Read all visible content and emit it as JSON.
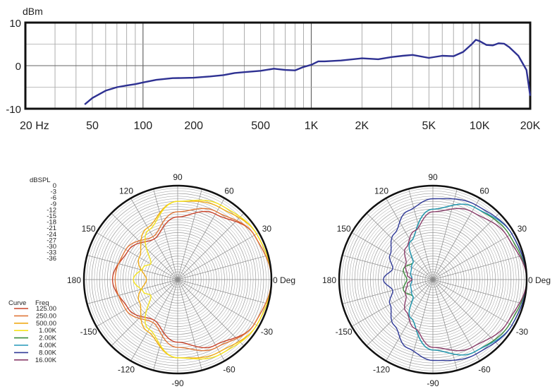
{
  "chart_data": [
    {
      "type": "line",
      "ylabel": "dBm",
      "x_scale": "log",
      "xlim": [
        20,
        20000
      ],
      "ylim": [
        -10,
        10
      ],
      "grid": true,
      "x_tick_labels": [
        "20 Hz",
        "50",
        "100",
        "200",
        "500",
        "1K",
        "2K",
        "5K",
        "10K",
        "20K"
      ],
      "x_tick_values": [
        20,
        50,
        100,
        200,
        500,
        1000,
        2000,
        5000,
        10000,
        20000
      ],
      "y_tick_labels": [
        "10",
        "0",
        "-10"
      ],
      "y_tick_values": [
        10,
        0,
        -10
      ],
      "line_color": "#2e3192",
      "x": [
        45,
        50,
        60,
        70,
        80,
        90,
        100,
        120,
        150,
        200,
        250,
        300,
        350,
        400,
        500,
        600,
        700,
        800,
        900,
        1000,
        1100,
        1200,
        1500,
        2000,
        2500,
        3000,
        3500,
        4000,
        5000,
        6000,
        7000,
        8000,
        9000,
        9500,
        10000,
        11000,
        12000,
        13000,
        14000,
        15000,
        17000,
        19000,
        20000
      ],
      "y": [
        -9,
        -7.5,
        -5.8,
        -5.0,
        -4.6,
        -4.3,
        -3.9,
        -3.3,
        -2.9,
        -2.8,
        -2.5,
        -2.2,
        -1.7,
        -1.5,
        -1.2,
        -0.7,
        -1.0,
        -1.1,
        -0.3,
        0.2,
        1.0,
        1.0,
        1.2,
        1.7,
        1.5,
        2.0,
        2.3,
        2.5,
        1.8,
        2.3,
        2.2,
        3.2,
        5.0,
        6.0,
        5.7,
        4.8,
        4.7,
        5.2,
        5.1,
        4.3,
        2.3,
        -1.0,
        -7.0
      ]
    },
    {
      "type": "polar",
      "rlabel": "dBSPL",
      "r_tick_labels": [
        "0",
        "-3",
        "-6",
        "-9",
        "-12",
        "-15",
        "-18",
        "-21",
        "-24",
        "-27",
        "-30",
        "-33",
        "-36"
      ],
      "rlim": [
        -36,
        0
      ],
      "angle_labels": [
        "0 Deg",
        "30",
        "60",
        "90",
        "120",
        "150",
        "180",
        "-150",
        "-120",
        "-90",
        "-60",
        "-30"
      ],
      "legend_headers": [
        "Curve",
        "Freq"
      ],
      "legend": [
        {
          "freq": "125.00",
          "color": "#c8432a"
        },
        {
          "freq": "250.00",
          "color": "#e0783a"
        },
        {
          "freq": "500.00",
          "color": "#f0aa18"
        },
        {
          "freq": "1.00K",
          "color": "#f4e21c"
        },
        {
          "freq": "2.00K",
          "color": "#3c8a3c"
        },
        {
          "freq": "4.00K",
          "color": "#2398b8"
        },
        {
          "freq": "8.00K",
          "color": "#303a98"
        },
        {
          "freq": "16.00K",
          "color": "#8a3e6a"
        }
      ],
      "series": [
        {
          "freq": "125.00",
          "angles": [
            0,
            30,
            60,
            90,
            120,
            150,
            180,
            -150,
            -120,
            -90,
            -60,
            -30
          ],
          "values": [
            0,
            -2,
            -7,
            -12,
            -18,
            -14,
            -11,
            -14,
            -18,
            -12,
            -7,
            -2
          ]
        },
        {
          "freq": "250.00",
          "angles": [
            0,
            30,
            60,
            90,
            120,
            150,
            180,
            -150,
            -120,
            -90,
            -60,
            -30
          ],
          "values": [
            0,
            -2,
            -6,
            -10,
            -17,
            -13,
            -12,
            -13,
            -17,
            -10,
            -6,
            -2
          ]
        },
        {
          "freq": "500.00",
          "angles": [
            0,
            30,
            60,
            90,
            120,
            150,
            180,
            -150,
            -120,
            -90,
            -60,
            -30
          ],
          "values": [
            0,
            -1,
            -4,
            -6,
            -13,
            -19,
            -24,
            -19,
            -13,
            -6,
            -4,
            -1
          ]
        },
        {
          "freq": "1.00K",
          "angles": [
            0,
            30,
            60,
            90,
            120,
            150,
            160,
            180,
            -160,
            -150,
            -120,
            -90,
            -60,
            -30
          ],
          "values": [
            0,
            -1,
            -3,
            -6,
            -14,
            -24,
            -22,
            -19,
            -22,
            -24,
            -14,
            -6,
            -3,
            -1
          ]
        }
      ]
    },
    {
      "type": "polar",
      "rlim": [
        -36,
        0
      ],
      "angle_labels": [
        "0 Deg",
        "30",
        "60",
        "90",
        "120",
        "150",
        "180",
        "-150",
        "-120",
        "-90",
        "-60",
        "-30"
      ],
      "series": [
        {
          "freq": "2.00K",
          "angles": [
            0,
            30,
            60,
            90,
            120,
            140,
            160,
            180,
            -160,
            -140,
            -120,
            -90,
            -60,
            -30
          ],
          "values": [
            0,
            -2,
            -4,
            -9,
            -19,
            -26,
            -24,
            -26,
            -24,
            -26,
            -19,
            -9,
            -4,
            -2
          ]
        },
        {
          "freq": "4.00K",
          "angles": [
            0,
            30,
            60,
            90,
            120,
            140,
            160,
            180,
            -160,
            -140,
            -120,
            -90,
            -60,
            -30
          ],
          "values": [
            0,
            -1,
            -4,
            -9,
            -19,
            -26,
            -27,
            -28,
            -27,
            -26,
            -19,
            -9,
            -4,
            -1
          ]
        },
        {
          "freq": "8.00K",
          "angles": [
            0,
            30,
            60,
            90,
            110,
            130,
            150,
            165,
            180,
            -165,
            -150,
            -130,
            -110,
            -90,
            -60,
            -30
          ],
          "values": [
            0,
            -1,
            -3,
            -5,
            -8,
            -13,
            -17,
            -20,
            -17,
            -20,
            -17,
            -13,
            -8,
            -5,
            -3,
            -1
          ]
        },
        {
          "freq": "16.00K",
          "angles": [
            0,
            30,
            60,
            90,
            110,
            130,
            150,
            170,
            180,
            -170,
            -150,
            -130,
            -110,
            -90,
            -60,
            -30
          ],
          "values": [
            0,
            -3,
            -6,
            -10,
            -16,
            -20,
            -24,
            -26,
            -28,
            -26,
            -24,
            -20,
            -16,
            -10,
            -6,
            -3
          ]
        }
      ]
    }
  ]
}
